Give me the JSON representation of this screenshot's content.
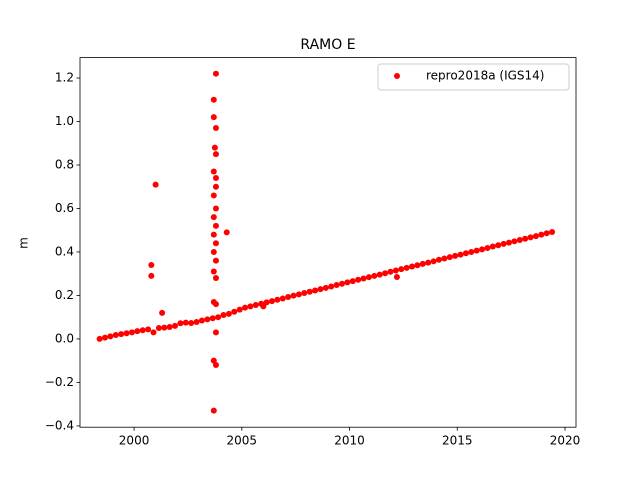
{
  "chart_data": {
    "type": "scatter",
    "title": "RAMO E",
    "y_label": "m",
    "x": [
      1998.4,
      1998.65,
      1998.9,
      1999.15,
      1999.4,
      1999.65,
      1999.9,
      2000.15,
      2000.4,
      2000.65,
      2000.9,
      2001.15,
      2001.4,
      2001.65,
      2001.9,
      2002.15,
      2002.4,
      2002.65,
      2002.9,
      2003.15,
      2003.4,
      2003.65,
      2003.9,
      2004.15,
      2004.4,
      2004.65,
      2004.9,
      2005.15,
      2005.4,
      2005.65,
      2005.9,
      2006.15,
      2006.4,
      2006.65,
      2006.9,
      2007.15,
      2007.4,
      2007.65,
      2007.9,
      2008.15,
      2008.4,
      2008.65,
      2008.9,
      2009.15,
      2009.4,
      2009.65,
      2009.9,
      2010.15,
      2010.4,
      2010.65,
      2010.9,
      2011.15,
      2011.4,
      2011.65,
      2011.9,
      2012.15,
      2012.4,
      2012.65,
      2012.9,
      2013.15,
      2013.4,
      2013.65,
      2013.9,
      2014.15,
      2014.4,
      2014.65,
      2014.9,
      2015.15,
      2015.4,
      2015.65,
      2015.9,
      2016.15,
      2016.4,
      2016.65,
      2016.9,
      2017.15,
      2017.4,
      2017.65,
      2017.9,
      2018.15,
      2018.4,
      2018.65,
      2018.9,
      2019.15,
      2019.4,
      2000.8,
      2000.8,
      2001.0,
      2001.3,
      2003.7,
      2003.8,
      2003.7,
      2003.8,
      2003.75,
      2003.8,
      2003.7,
      2003.8,
      2003.8,
      2003.7,
      2003.8,
      2003.7,
      2003.8,
      2003.7,
      2003.8,
      2003.7,
      2003.8,
      2003.7,
      2003.8,
      2003.7,
      2003.8,
      2003.8,
      2003.7,
      2003.8,
      2003.7,
      2004.3,
      2006.0,
      2012.2
    ],
    "series": [
      {
        "name": "repro2018a (IGS14)",
        "color": "#ff0000",
        "values": [
          0.0,
          0.006,
          0.012,
          0.018,
          0.022,
          0.026,
          0.03,
          0.036,
          0.04,
          0.044,
          0.03,
          0.05,
          0.052,
          0.055,
          0.06,
          0.072,
          0.075,
          0.073,
          0.078,
          0.085,
          0.09,
          0.095,
          0.1,
          0.11,
          0.115,
          0.125,
          0.135,
          0.144,
          0.15,
          0.156,
          0.162,
          0.168,
          0.174,
          0.18,
          0.186,
          0.193,
          0.199,
          0.205,
          0.211,
          0.217,
          0.223,
          0.229,
          0.235,
          0.241,
          0.248,
          0.254,
          0.26,
          0.266,
          0.272,
          0.278,
          0.284,
          0.29,
          0.296,
          0.302,
          0.309,
          0.315,
          0.321,
          0.327,
          0.333,
          0.339,
          0.345,
          0.351,
          0.357,
          0.364,
          0.37,
          0.376,
          0.382,
          0.388,
          0.394,
          0.4,
          0.406,
          0.412,
          0.418,
          0.425,
          0.431,
          0.437,
          0.443,
          0.449,
          0.455,
          0.461,
          0.467,
          0.473,
          0.48,
          0.486,
          0.492,
          0.29,
          0.34,
          0.71,
          0.12,
          1.1,
          1.22,
          1.02,
          0.97,
          0.88,
          0.85,
          0.77,
          0.74,
          0.7,
          0.66,
          0.6,
          0.56,
          0.52,
          0.48,
          0.44,
          0.4,
          0.36,
          0.31,
          0.28,
          0.17,
          0.16,
          0.03,
          -0.1,
          -0.12,
          -0.33,
          0.49,
          0.15,
          0.285
        ]
      }
    ],
    "xlim": [
      1997.49,
      2020.51
    ],
    "ylim": [
      -0.406,
      1.294
    ],
    "xticks": [
      2000,
      2005,
      2010,
      2015,
      2020
    ],
    "yticks": [
      {
        "value": -0.4,
        "label": "−0.4"
      },
      {
        "value": -0.2,
        "label": "−0.2"
      },
      {
        "value": 0,
        "label": "0.0"
      },
      {
        "value": 0.2,
        "label": "0.2"
      },
      {
        "value": 0.4,
        "label": "0.4"
      },
      {
        "value": 0.6,
        "label": "0.6"
      },
      {
        "value": 0.8,
        "label": "0.8"
      },
      {
        "value": 1.0,
        "label": "1.0"
      },
      {
        "value": 1.2,
        "label": "1.2"
      }
    ],
    "legend": "upper right",
    "grid": false
  }
}
